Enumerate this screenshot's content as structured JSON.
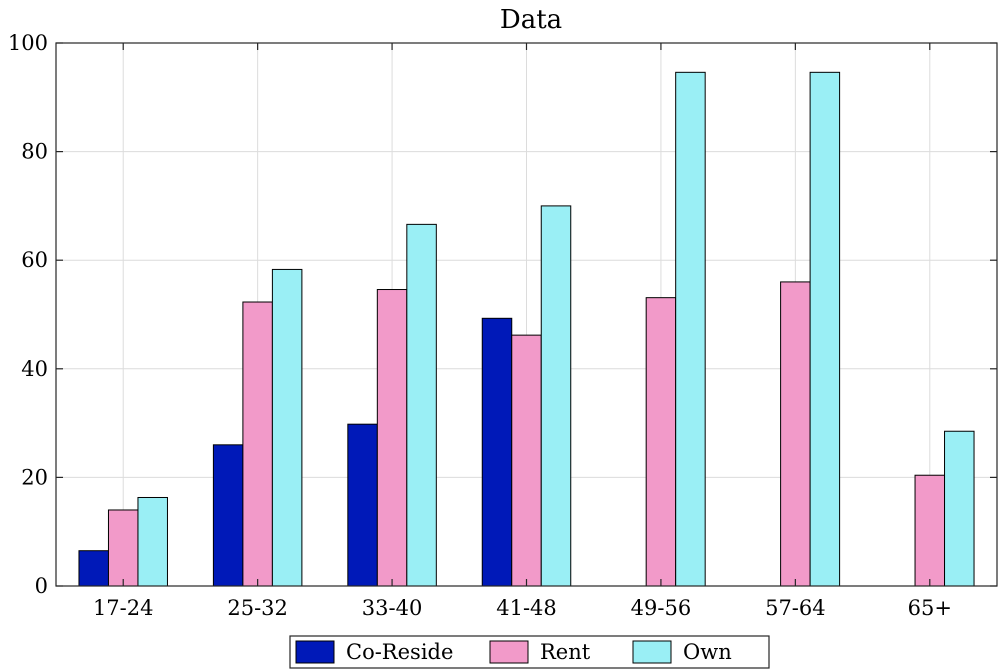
{
  "chart_data": {
    "type": "bar",
    "title": "Data",
    "xlabel": "",
    "ylabel": "",
    "categories": [
      "17-24",
      "25-32",
      "33-40",
      "41-48",
      "49-56",
      "57-64",
      "65+"
    ],
    "ylim": [
      0,
      100
    ],
    "yticks": [
      0,
      20,
      40,
      60,
      80,
      100
    ],
    "grid": true,
    "legend_position": "bottom",
    "series": [
      {
        "name": "Co-Reside",
        "color": "#0019b8",
        "values": [
          6.5,
          26,
          29.8,
          49.3,
          0,
          0,
          0
        ]
      },
      {
        "name": "Rent",
        "color": "#f29ac9",
        "values": [
          14,
          52.3,
          54.6,
          46.2,
          53.1,
          56,
          20.4
        ]
      },
      {
        "name": "Own",
        "color": "#9aeff5",
        "values": [
          16.3,
          58.3,
          66.6,
          70,
          94.6,
          94.6,
          28.5
        ]
      }
    ]
  }
}
